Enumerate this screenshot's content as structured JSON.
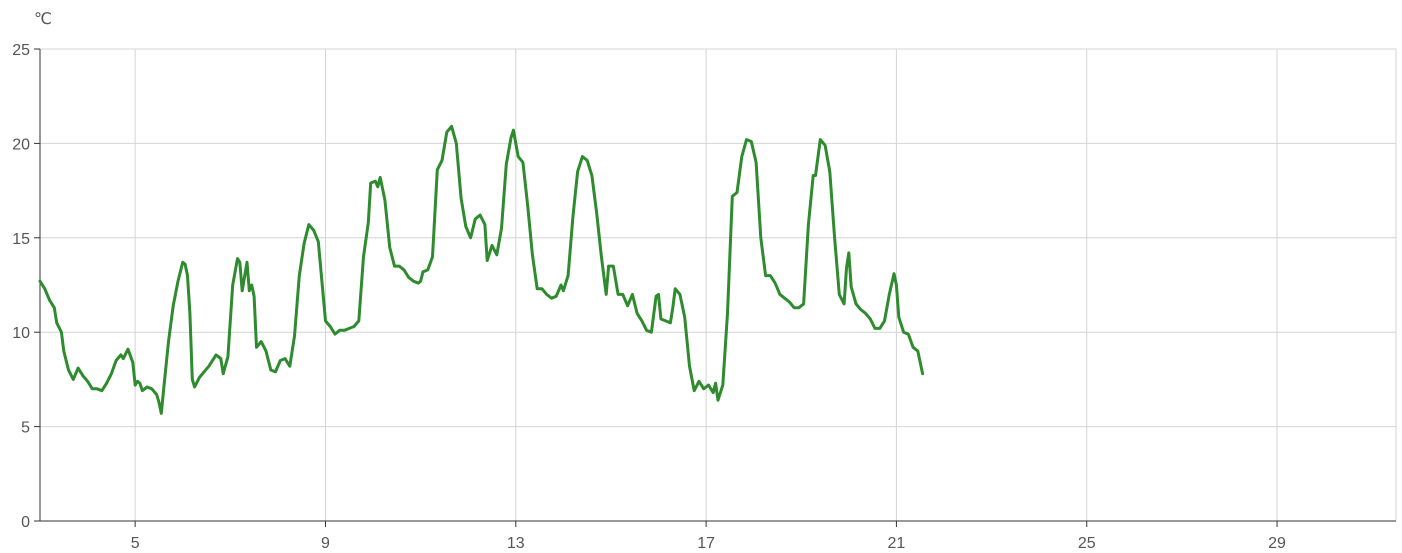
{
  "chart_data": {
    "type": "line",
    "title": "",
    "ylabel": "℃",
    "xlabel": "",
    "ylim": [
      0,
      25
    ],
    "xlim": [
      3,
      31.5
    ],
    "grid": true,
    "legend": "none",
    "x_ticks": [
      5,
      9,
      13,
      17,
      21,
      25,
      29
    ],
    "y_ticks": [
      0,
      5,
      10,
      15,
      20,
      25
    ],
    "series": [
      {
        "color": "#2e8b2e",
        "points": [
          [
            3.0,
            12.7
          ],
          [
            3.1,
            12.3
          ],
          [
            3.2,
            11.7
          ],
          [
            3.3,
            11.3
          ],
          [
            3.35,
            10.5
          ],
          [
            3.45,
            10.0
          ],
          [
            3.5,
            9.0
          ],
          [
            3.6,
            8.0
          ],
          [
            3.7,
            7.5
          ],
          [
            3.8,
            8.1
          ],
          [
            3.9,
            7.7
          ],
          [
            4.0,
            7.4
          ],
          [
            4.1,
            7.0
          ],
          [
            4.2,
            7.0
          ],
          [
            4.3,
            6.9
          ],
          [
            4.4,
            7.3
          ],
          [
            4.5,
            7.8
          ],
          [
            4.6,
            8.5
          ],
          [
            4.7,
            8.8
          ],
          [
            4.75,
            8.6
          ],
          [
            4.85,
            9.1
          ],
          [
            4.95,
            8.4
          ],
          [
            5.0,
            7.2
          ],
          [
            5.05,
            7.4
          ],
          [
            5.1,
            7.3
          ],
          [
            5.15,
            6.9
          ],
          [
            5.25,
            7.1
          ],
          [
            5.35,
            7.0
          ],
          [
            5.45,
            6.7
          ],
          [
            5.5,
            6.3
          ],
          [
            5.55,
            5.7
          ],
          [
            5.6,
            7.0
          ],
          [
            5.7,
            9.5
          ],
          [
            5.8,
            11.4
          ],
          [
            5.9,
            12.7
          ],
          [
            6.0,
            13.7
          ],
          [
            6.05,
            13.6
          ],
          [
            6.1,
            13.0
          ],
          [
            6.15,
            11.0
          ],
          [
            6.2,
            7.5
          ],
          [
            6.25,
            7.1
          ],
          [
            6.35,
            7.6
          ],
          [
            6.45,
            7.9
          ],
          [
            6.55,
            8.2
          ],
          [
            6.7,
            8.8
          ],
          [
            6.8,
            8.6
          ],
          [
            6.85,
            7.8
          ],
          [
            6.95,
            8.7
          ],
          [
            7.05,
            12.5
          ],
          [
            7.15,
            13.9
          ],
          [
            7.2,
            13.7
          ],
          [
            7.25,
            12.2
          ],
          [
            7.35,
            13.7
          ],
          [
            7.4,
            12.2
          ],
          [
            7.45,
            12.5
          ],
          [
            7.5,
            11.9
          ],
          [
            7.55,
            9.2
          ],
          [
            7.65,
            9.5
          ],
          [
            7.75,
            9.0
          ],
          [
            7.85,
            8.0
          ],
          [
            7.95,
            7.9
          ],
          [
            8.05,
            8.5
          ],
          [
            8.15,
            8.6
          ],
          [
            8.25,
            8.2
          ],
          [
            8.35,
            9.8
          ],
          [
            8.45,
            13.0
          ],
          [
            8.55,
            14.7
          ],
          [
            8.65,
            15.7
          ],
          [
            8.75,
            15.4
          ],
          [
            8.85,
            14.8
          ],
          [
            8.95,
            12.0
          ],
          [
            9.0,
            10.6
          ],
          [
            9.1,
            10.3
          ],
          [
            9.2,
            9.9
          ],
          [
            9.3,
            10.1
          ],
          [
            9.4,
            10.1
          ],
          [
            9.5,
            10.2
          ],
          [
            9.6,
            10.3
          ],
          [
            9.7,
            10.6
          ],
          [
            9.8,
            14.0
          ],
          [
            9.9,
            15.8
          ],
          [
            9.95,
            17.9
          ],
          [
            10.05,
            18.0
          ],
          [
            10.1,
            17.7
          ],
          [
            10.15,
            18.2
          ],
          [
            10.25,
            17.0
          ],
          [
            10.35,
            14.5
          ],
          [
            10.45,
            13.5
          ],
          [
            10.55,
            13.5
          ],
          [
            10.65,
            13.3
          ],
          [
            10.75,
            12.9
          ],
          [
            10.85,
            12.7
          ],
          [
            10.95,
            12.6
          ],
          [
            11.0,
            12.7
          ],
          [
            11.05,
            13.2
          ],
          [
            11.15,
            13.3
          ],
          [
            11.25,
            14.0
          ],
          [
            11.35,
            18.6
          ],
          [
            11.45,
            19.1
          ],
          [
            11.55,
            20.6
          ],
          [
            11.65,
            20.9
          ],
          [
            11.75,
            20.0
          ],
          [
            11.85,
            17.1
          ],
          [
            11.95,
            15.6
          ],
          [
            12.05,
            15.0
          ],
          [
            12.15,
            16.0
          ],
          [
            12.25,
            16.2
          ],
          [
            12.35,
            15.7
          ],
          [
            12.4,
            13.8
          ],
          [
            12.5,
            14.6
          ],
          [
            12.6,
            14.1
          ],
          [
            12.7,
            15.5
          ],
          [
            12.8,
            18.9
          ],
          [
            12.9,
            20.3
          ],
          [
            12.95,
            20.7
          ],
          [
            13.05,
            19.3
          ],
          [
            13.15,
            19.0
          ],
          [
            13.25,
            16.7
          ],
          [
            13.35,
            14.1
          ],
          [
            13.45,
            12.3
          ],
          [
            13.55,
            12.3
          ],
          [
            13.65,
            12.0
          ],
          [
            13.75,
            11.8
          ],
          [
            13.85,
            11.9
          ],
          [
            13.95,
            12.5
          ],
          [
            14.0,
            12.2
          ],
          [
            14.1,
            13.0
          ],
          [
            14.2,
            16.1
          ],
          [
            14.3,
            18.5
          ],
          [
            14.4,
            19.3
          ],
          [
            14.5,
            19.1
          ],
          [
            14.6,
            18.3
          ],
          [
            14.7,
            16.3
          ],
          [
            14.8,
            14.0
          ],
          [
            14.9,
            12.0
          ],
          [
            14.95,
            13.5
          ],
          [
            15.05,
            13.5
          ],
          [
            15.15,
            12.0
          ],
          [
            15.25,
            12.0
          ],
          [
            15.35,
            11.4
          ],
          [
            15.45,
            12.0
          ],
          [
            15.55,
            11.0
          ],
          [
            15.65,
            10.6
          ],
          [
            15.75,
            10.1
          ],
          [
            15.85,
            10.0
          ],
          [
            15.95,
            11.9
          ],
          [
            16.0,
            12.0
          ],
          [
            16.05,
            10.7
          ],
          [
            16.15,
            10.6
          ],
          [
            16.25,
            10.5
          ],
          [
            16.3,
            11.3
          ],
          [
            16.35,
            12.3
          ],
          [
            16.45,
            12.0
          ],
          [
            16.55,
            10.8
          ],
          [
            16.65,
            8.2
          ],
          [
            16.75,
            6.9
          ],
          [
            16.85,
            7.4
          ],
          [
            16.95,
            7.0
          ],
          [
            17.05,
            7.2
          ],
          [
            17.15,
            6.8
          ],
          [
            17.2,
            7.3
          ],
          [
            17.25,
            6.4
          ],
          [
            17.35,
            7.2
          ],
          [
            17.45,
            11.0
          ],
          [
            17.55,
            17.2
          ],
          [
            17.65,
            17.4
          ],
          [
            17.75,
            19.3
          ],
          [
            17.85,
            20.2
          ],
          [
            17.95,
            20.1
          ],
          [
            18.05,
            19.0
          ],
          [
            18.15,
            15.0
          ],
          [
            18.25,
            13.0
          ],
          [
            18.35,
            13.0
          ],
          [
            18.45,
            12.6
          ],
          [
            18.55,
            12.0
          ],
          [
            18.65,
            11.8
          ],
          [
            18.75,
            11.6
          ],
          [
            18.85,
            11.3
          ],
          [
            18.95,
            11.3
          ],
          [
            19.05,
            11.5
          ],
          [
            19.15,
            15.7
          ],
          [
            19.25,
            18.3
          ],
          [
            19.3,
            18.3
          ],
          [
            19.4,
            20.2
          ],
          [
            19.5,
            19.9
          ],
          [
            19.6,
            18.5
          ],
          [
            19.7,
            15.0
          ],
          [
            19.8,
            12.0
          ],
          [
            19.9,
            11.5
          ],
          [
            19.95,
            13.4
          ],
          [
            20.0,
            14.2
          ],
          [
            20.05,
            12.4
          ],
          [
            20.15,
            11.5
          ],
          [
            20.25,
            11.2
          ],
          [
            20.35,
            11.0
          ],
          [
            20.45,
            10.7
          ],
          [
            20.55,
            10.2
          ],
          [
            20.65,
            10.2
          ],
          [
            20.75,
            10.6
          ],
          [
            20.85,
            12.0
          ],
          [
            20.95,
            13.1
          ],
          [
            21.0,
            12.5
          ],
          [
            21.05,
            10.8
          ],
          [
            21.15,
            10.0
          ],
          [
            21.25,
            9.9
          ],
          [
            21.35,
            9.2
          ],
          [
            21.45,
            9.0
          ],
          [
            21.55,
            7.8
          ]
        ]
      }
    ]
  }
}
